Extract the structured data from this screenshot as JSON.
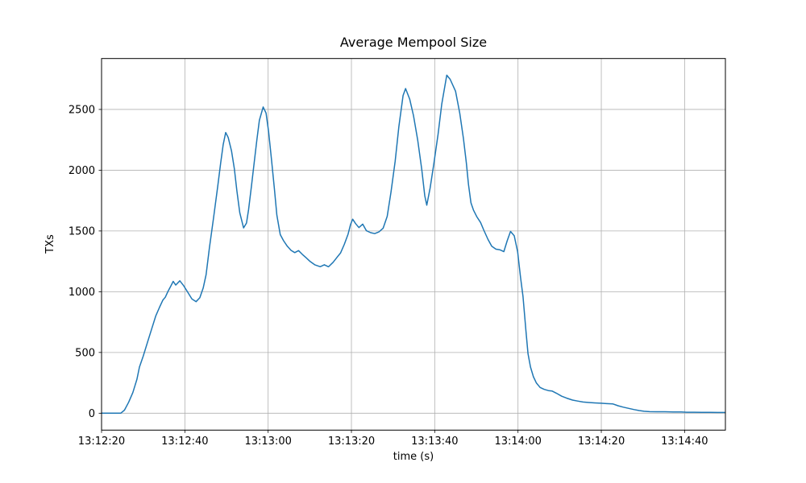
{
  "figure": {
    "title": "Average Mempool Size",
    "xlabel": "time (s)",
    "ylabel": "TXs"
  },
  "chart_data": {
    "type": "line",
    "title": "Average Mempool Size",
    "xlabel": "time (s)",
    "ylabel": "TXs",
    "grid": true,
    "legend": "none",
    "line_color": "#1f77b4",
    "grid_color": "#b0b0b0",
    "x_tick_labels": [
      "13:12:20",
      "13:12:40",
      "13:13:00",
      "13:13:20",
      "13:13:40",
      "13:14:00",
      "13:14:20",
      "13:14:40"
    ],
    "x_tick_seconds": [
      0,
      20,
      40,
      60,
      80,
      100,
      120,
      140
    ],
    "y_ticks": [
      0,
      500,
      1000,
      1500,
      2000,
      2500
    ],
    "xlim_seconds": [
      0,
      149.8
    ],
    "ylim": [
      -139,
      2919
    ],
    "series": [
      {
        "name": "average-mempool-size",
        "points_t_seconds_after_13_12_20_and_txs": [
          [
            0,
            0
          ],
          [
            2,
            0
          ],
          [
            4,
            0
          ],
          [
            4.6,
            0
          ],
          [
            5.5,
            25
          ],
          [
            6.5,
            90
          ],
          [
            7.5,
            170
          ],
          [
            8.5,
            280
          ],
          [
            9.1,
            380
          ],
          [
            10,
            470
          ],
          [
            11,
            580
          ],
          [
            12,
            690
          ],
          [
            13,
            800
          ],
          [
            13.9,
            870
          ],
          [
            14.7,
            930
          ],
          [
            15.3,
            955
          ],
          [
            15.9,
            1000
          ],
          [
            16.6,
            1045
          ],
          [
            17.2,
            1085
          ],
          [
            17.8,
            1055
          ],
          [
            18.8,
            1090
          ],
          [
            19.7,
            1050
          ],
          [
            20.7,
            995
          ],
          [
            21.7,
            940
          ],
          [
            22.7,
            918
          ],
          [
            23.6,
            950
          ],
          [
            24.4,
            1030
          ],
          [
            25.1,
            1140
          ],
          [
            25.9,
            1360
          ],
          [
            26.9,
            1610
          ],
          [
            27.9,
            1870
          ],
          [
            28.6,
            2060
          ],
          [
            29.2,
            2210
          ],
          [
            29.8,
            2310
          ],
          [
            30.4,
            2270
          ],
          [
            31.2,
            2160
          ],
          [
            31.9,
            2010
          ],
          [
            32.5,
            1830
          ],
          [
            33.2,
            1650
          ],
          [
            34.1,
            1525
          ],
          [
            34.8,
            1565
          ],
          [
            35.3,
            1675
          ],
          [
            36,
            1870
          ],
          [
            36.7,
            2075
          ],
          [
            37.3,
            2250
          ],
          [
            37.9,
            2410
          ],
          [
            38.8,
            2520
          ],
          [
            39.5,
            2470
          ],
          [
            40.1,
            2320
          ],
          [
            40.8,
            2090
          ],
          [
            41.5,
            1850
          ],
          [
            42.1,
            1630
          ],
          [
            42.9,
            1470
          ],
          [
            43.7,
            1420
          ],
          [
            44.6,
            1375
          ],
          [
            45.5,
            1340
          ],
          [
            46.4,
            1322
          ],
          [
            47.3,
            1338
          ],
          [
            48.2,
            1308
          ],
          [
            49.1,
            1280
          ],
          [
            50.1,
            1248
          ],
          [
            51.2,
            1222
          ],
          [
            52.5,
            1206
          ],
          [
            53.5,
            1222
          ],
          [
            54.5,
            1205
          ],
          [
            55.6,
            1242
          ],
          [
            56.6,
            1285
          ],
          [
            57.4,
            1320
          ],
          [
            58.3,
            1390
          ],
          [
            59.2,
            1475
          ],
          [
            59.8,
            1555
          ],
          [
            60.3,
            1597
          ],
          [
            61,
            1560
          ],
          [
            61.8,
            1528
          ],
          [
            62.7,
            1556
          ],
          [
            63.6,
            1502
          ],
          [
            64.6,
            1486
          ],
          [
            65.6,
            1478
          ],
          [
            66.6,
            1492
          ],
          [
            67.6,
            1522
          ],
          [
            68.6,
            1620
          ],
          [
            69.5,
            1820
          ],
          [
            70.5,
            2075
          ],
          [
            71.4,
            2360
          ],
          [
            72.4,
            2615
          ],
          [
            73,
            2672
          ],
          [
            74,
            2585
          ],
          [
            74.9,
            2450
          ],
          [
            75.9,
            2250
          ],
          [
            76.9,
            2005
          ],
          [
            77.6,
            1790
          ],
          [
            78.1,
            1712
          ],
          [
            78.9,
            1855
          ],
          [
            79.8,
            2055
          ],
          [
            80.8,
            2295
          ],
          [
            81.7,
            2545
          ],
          [
            82.9,
            2782
          ],
          [
            83.7,
            2748
          ],
          [
            85,
            2650
          ],
          [
            86,
            2470
          ],
          [
            86.9,
            2260
          ],
          [
            87.6,
            2060
          ],
          [
            88.1,
            1885
          ],
          [
            88.7,
            1732
          ],
          [
            89.3,
            1672
          ],
          [
            90.1,
            1618
          ],
          [
            91,
            1570
          ],
          [
            91.8,
            1506
          ],
          [
            92.8,
            1430
          ],
          [
            93.7,
            1374
          ],
          [
            94.7,
            1350
          ],
          [
            95.7,
            1344
          ],
          [
            96.6,
            1330
          ],
          [
            97.4,
            1420
          ],
          [
            98.2,
            1496
          ],
          [
            99.1,
            1460
          ],
          [
            99.9,
            1330
          ],
          [
            100.6,
            1120
          ],
          [
            101.2,
            960
          ],
          [
            101.9,
            680
          ],
          [
            102.4,
            490
          ],
          [
            103,
            380
          ],
          [
            103.7,
            300
          ],
          [
            104.4,
            250
          ],
          [
            105.3,
            212
          ],
          [
            106.3,
            196
          ],
          [
            107.3,
            186
          ],
          [
            108.2,
            182
          ],
          [
            109.2,
            165
          ],
          [
            110.5,
            140
          ],
          [
            111.7,
            124
          ],
          [
            113.1,
            108
          ],
          [
            114.3,
            100
          ],
          [
            115.6,
            92
          ],
          [
            117,
            88
          ],
          [
            118.4,
            85
          ],
          [
            119.9,
            82
          ],
          [
            121.3,
            79
          ],
          [
            122.8,
            76
          ],
          [
            124,
            62
          ],
          [
            125.3,
            50
          ],
          [
            126.6,
            40
          ],
          [
            127.9,
            30
          ],
          [
            129.1,
            22
          ],
          [
            130.3,
            16
          ],
          [
            131.6,
            13
          ],
          [
            133.3,
            12
          ],
          [
            135.3,
            12
          ],
          [
            137.3,
            11
          ],
          [
            139.2,
            10
          ],
          [
            140.5,
            8
          ],
          [
            142.3,
            8
          ],
          [
            144.2,
            7
          ],
          [
            146.2,
            7
          ],
          [
            148.1,
            6
          ],
          [
            149.6,
            6
          ]
        ]
      }
    ]
  }
}
